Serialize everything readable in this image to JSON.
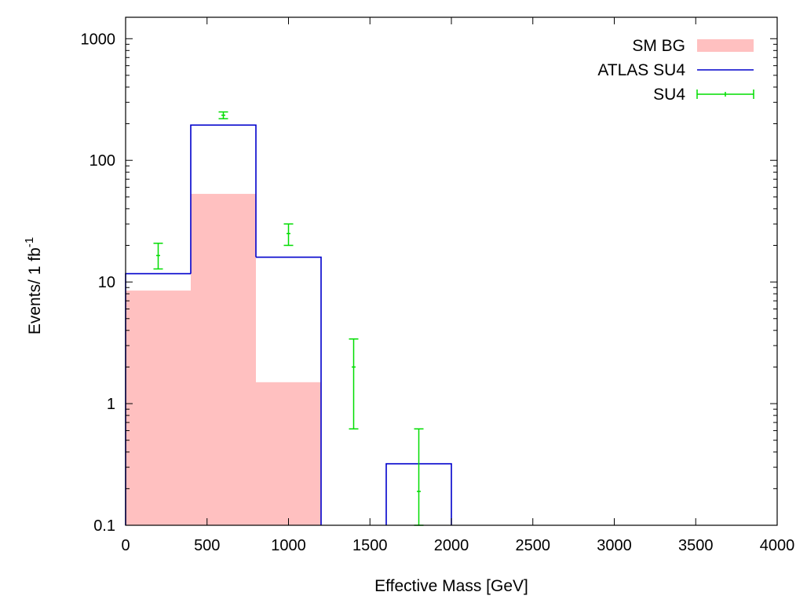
{
  "chart_data": {
    "type": "bar",
    "xlabel": "Effective Mass [GeV]",
    "ylabel": "Events/ 1 fb",
    "ylabel_superscript": "-1",
    "xlim": [
      0,
      4000
    ],
    "ylim": [
      0.1,
      1500
    ],
    "yscale": "log",
    "grid": false,
    "legend_position": "top-right",
    "x_ticks": [
      0,
      500,
      1000,
      1500,
      2000,
      2500,
      3000,
      3500,
      4000
    ],
    "x_tick_labels": [
      "0",
      "500",
      "1000",
      "1500",
      "2000",
      "2500",
      "3000",
      "3500",
      "4000"
    ],
    "y_ticks": [
      0.1,
      1,
      10,
      100,
      1000
    ],
    "y_tick_labels": [
      "0.1",
      "1",
      "10",
      "100",
      "1000"
    ],
    "bin_edges": [
      0,
      400,
      800,
      1200,
      1600,
      2000
    ],
    "series": [
      {
        "name": "SM BG",
        "style": "filled-histogram",
        "color": "#ffc0c0",
        "values": [
          8.5,
          53,
          1.5,
          0.1,
          0.1
        ]
      },
      {
        "name": "ATLAS SU4",
        "style": "step-outline",
        "color": "#0000cc",
        "values": [
          11.7,
          195,
          16,
          0.1,
          0.32
        ]
      },
      {
        "name": "SU4",
        "style": "errorbars",
        "color": "#00dd00",
        "x": [
          200,
          600,
          1000,
          1400,
          1800
        ],
        "y": [
          16.5,
          235,
          25,
          2.0,
          0.19
        ],
        "yerr_low": [
          12.8,
          220,
          20,
          0.62,
          0.1
        ],
        "yerr_high": [
          20.8,
          250,
          30,
          3.4,
          0.62
        ]
      }
    ]
  }
}
